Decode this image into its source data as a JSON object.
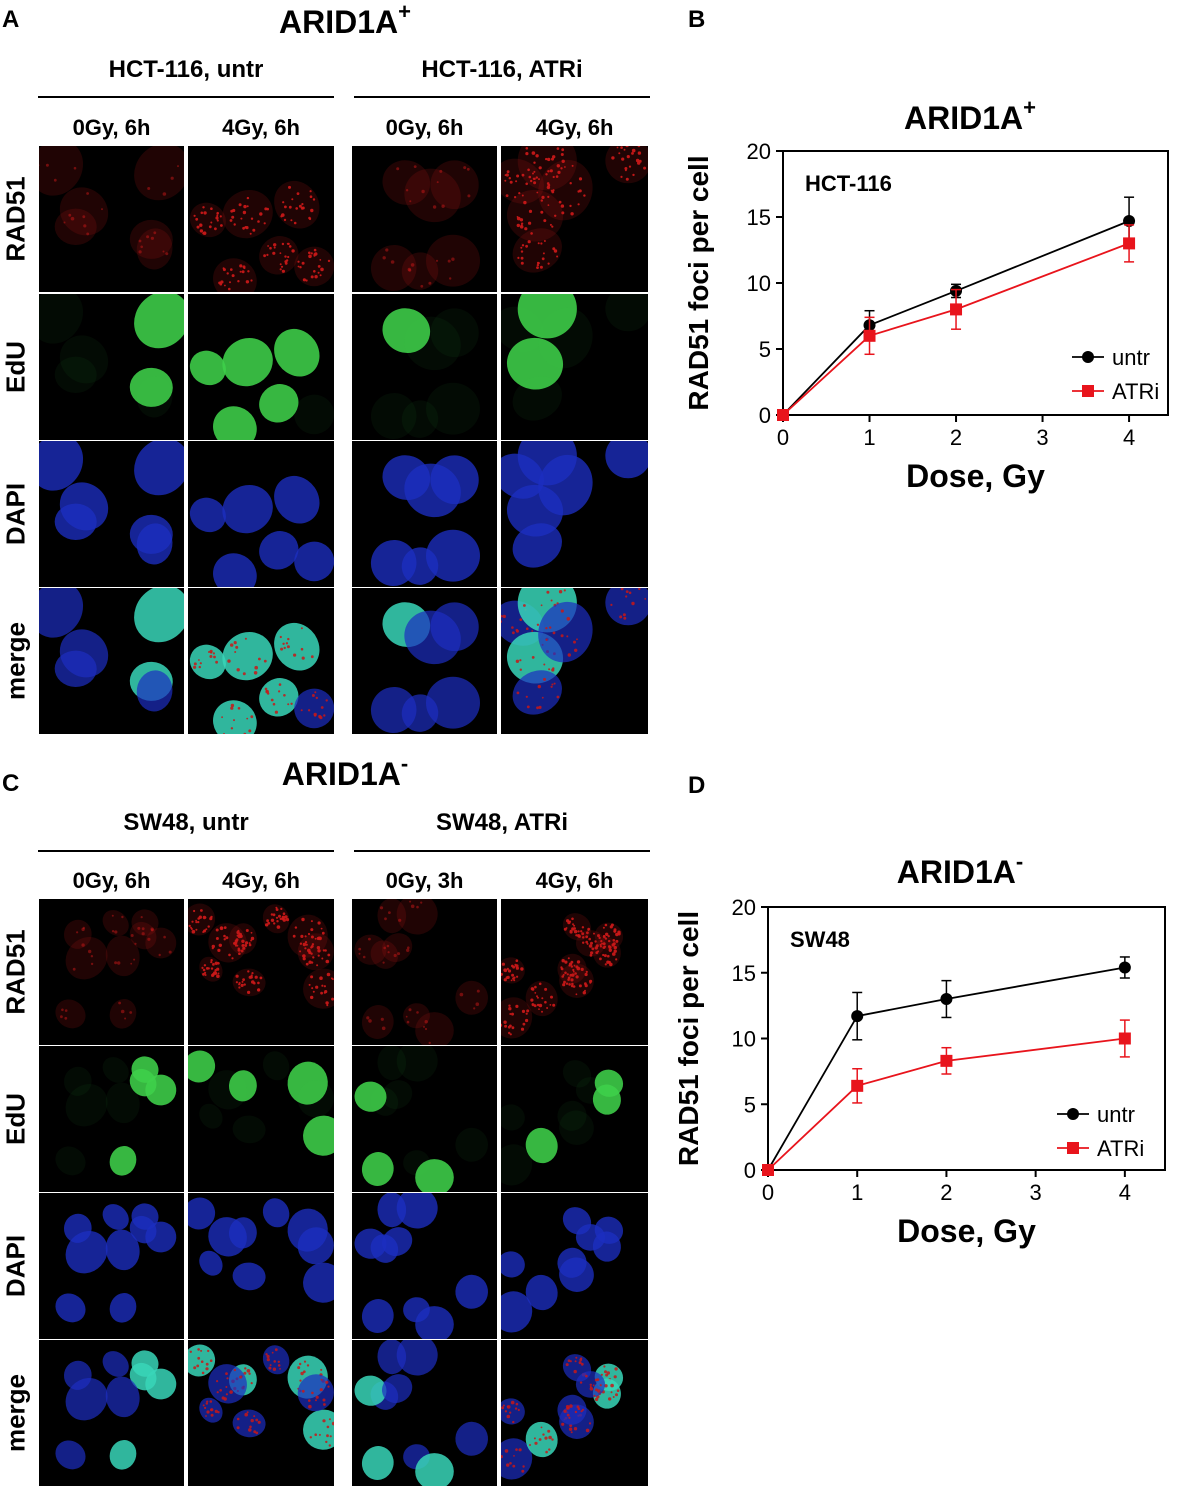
{
  "figure": {
    "panels": [
      {
        "letter": "A",
        "title": "ARID1A",
        "title_sup": "+",
        "conditions": [
          "HCT-116, untr",
          "HCT-116, ATRi"
        ],
        "columns": [
          "0Gy, 6h",
          "4Gy, 6h",
          "0Gy, 6h",
          "4Gy, 6h"
        ],
        "rows": [
          "RAD51",
          "EdU",
          "DAPI",
          "merge"
        ]
      },
      {
        "letter": "C",
        "title": "ARID1A",
        "title_sup": "-",
        "conditions": [
          "SW48, untr",
          "SW48, ATRi"
        ],
        "columns": [
          "0Gy, 6h",
          "4Gy, 6h",
          "0Gy, 3h",
          "4Gy, 6h"
        ],
        "rows": [
          "RAD51",
          "EdU",
          "DAPI",
          "merge"
        ]
      }
    ],
    "colors": {
      "rad51": "#c81818",
      "edu": "#3fd04a",
      "dapi": "#1c2ec0",
      "merge_overlap": "#38d6b8",
      "untr": "#000000",
      "atri": "#e8141c"
    }
  },
  "chart_data": [
    {
      "letter": "B",
      "type": "line",
      "title": "ARID1A",
      "title_sup": "+",
      "annotation": "HCT-116",
      "xlabel": "Dose, Gy",
      "ylabel": "RAD51  foci per cell",
      "xlim": [
        0,
        4.45
      ],
      "ylim": [
        0,
        20
      ],
      "xticks": [
        0,
        1,
        2,
        3,
        4
      ],
      "yticks": [
        0,
        5,
        10,
        15,
        20
      ],
      "legend_position": "bottom-right",
      "x": [
        0,
        1,
        2,
        4
      ],
      "series": [
        {
          "name": "untr",
          "color": "#000000",
          "marker": "circle",
          "values": [
            0,
            6.8,
            9.4,
            14.7
          ],
          "errors": [
            0,
            1.1,
            0.5,
            1.8
          ]
        },
        {
          "name": "ATRi",
          "color": "#e8141c",
          "marker": "square",
          "values": [
            0,
            6.0,
            8.0,
            13.0
          ],
          "errors": [
            0,
            1.4,
            1.5,
            1.4
          ]
        }
      ]
    },
    {
      "letter": "D",
      "type": "line",
      "title": "ARID1A",
      "title_sup": "-",
      "annotation": "SW48",
      "xlabel": "Dose, Gy",
      "ylabel": "RAD51  foci per cell",
      "xlim": [
        0,
        4.45
      ],
      "ylim": [
        0,
        20
      ],
      "xticks": [
        0,
        1,
        2,
        3,
        4
      ],
      "yticks": [
        0,
        5,
        10,
        15,
        20
      ],
      "legend_position": "bottom-right",
      "x": [
        0,
        1,
        2,
        4
      ],
      "series": [
        {
          "name": "untr",
          "color": "#000000",
          "marker": "circle",
          "values": [
            0,
            11.7,
            13.0,
            15.4
          ],
          "errors": [
            0,
            1.8,
            1.4,
            0.8
          ]
        },
        {
          "name": "ATRi",
          "color": "#e8141c",
          "marker": "square",
          "values": [
            0,
            6.4,
            8.3,
            10.0
          ],
          "errors": [
            0,
            1.3,
            1.0,
            1.4
          ]
        }
      ]
    }
  ]
}
